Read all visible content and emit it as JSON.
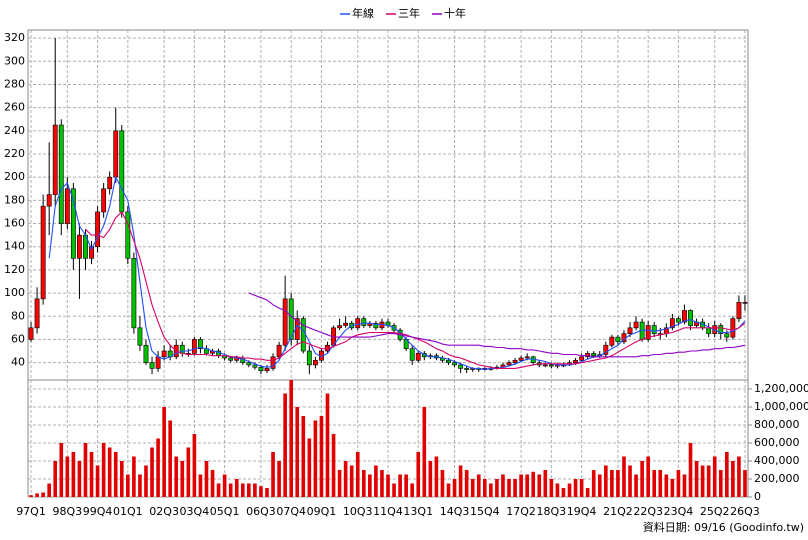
{
  "chart_data": {
    "type": "candlestick",
    "categories": [
      "97Q1",
      null,
      null,
      null,
      null,
      null,
      "98Q3",
      null,
      null,
      null,
      null,
      "99Q4",
      null,
      null,
      null,
      null,
      "01Q1",
      null,
      null,
      null,
      null,
      null,
      "02Q3",
      null,
      null,
      null,
      null,
      "03Q4",
      null,
      null,
      null,
      null,
      "05Q1",
      null,
      null,
      null,
      null,
      null,
      "06Q3",
      null,
      null,
      null,
      null,
      "07Q4",
      null,
      null,
      null,
      null,
      "09Q1",
      null,
      null,
      null,
      null,
      null,
      "10Q3",
      null,
      null,
      null,
      null,
      "11Q4",
      null,
      null,
      null,
      null,
      "13Q1",
      null,
      null,
      null,
      null,
      null,
      "14Q3",
      null,
      null,
      null,
      null,
      "15Q4",
      null,
      null,
      null,
      null,
      null,
      "17Q2",
      null,
      null,
      null,
      null,
      "18Q3",
      null,
      null,
      null,
      null,
      "19Q4",
      null,
      null,
      null,
      null,
      null,
      "21Q2",
      null,
      null,
      null,
      null,
      "22Q3",
      null,
      null,
      null,
      null,
      "23Q4",
      null,
      null,
      null,
      null,
      null,
      "25Q2",
      null,
      null,
      null,
      null,
      "26Q3"
    ],
    "open": [
      60,
      70,
      95,
      175,
      185,
      245,
      160,
      190,
      130,
      150,
      130,
      140,
      170,
      190,
      200,
      240,
      170,
      130,
      70,
      55,
      40,
      35,
      45,
      50,
      45,
      55,
      48,
      48,
      60,
      52,
      48,
      50,
      46,
      44,
      42,
      44,
      40,
      38,
      36,
      33,
      35,
      45,
      55,
      95,
      60,
      78,
      50,
      38,
      42,
      50,
      55,
      70,
      72,
      74,
      70,
      78,
      72,
      74,
      70,
      75,
      72,
      68,
      60,
      52,
      42,
      48,
      45,
      46,
      44,
      42,
      40,
      38,
      35,
      34,
      35,
      34,
      35,
      35,
      36,
      38,
      40,
      42,
      44,
      45,
      40,
      38,
      38,
      37,
      38,
      38,
      40,
      42,
      45,
      48,
      46,
      47,
      55,
      62,
      58,
      65,
      70,
      75,
      60,
      72,
      65,
      65,
      70,
      78,
      75,
      85,
      72,
      75,
      70,
      65,
      72,
      65,
      62,
      78,
      92
    ],
    "high": [
      75,
      105,
      185,
      230,
      320,
      250,
      200,
      195,
      160,
      155,
      145,
      175,
      195,
      205,
      260,
      245,
      175,
      135,
      80,
      60,
      45,
      50,
      55,
      55,
      60,
      58,
      52,
      62,
      62,
      55,
      52,
      52,
      48,
      46,
      46,
      46,
      42,
      40,
      38,
      38,
      48,
      58,
      115,
      100,
      85,
      80,
      55,
      45,
      52,
      58,
      72,
      78,
      80,
      76,
      80,
      80,
      76,
      76,
      78,
      78,
      74,
      70,
      62,
      55,
      50,
      50,
      48,
      48,
      46,
      44,
      42,
      40,
      37,
      36,
      36,
      36,
      37,
      38,
      40,
      42,
      44,
      46,
      48,
      46,
      42,
      40,
      40,
      40,
      40,
      42,
      44,
      48,
      50,
      50,
      50,
      58,
      64,
      64,
      68,
      75,
      80,
      78,
      76,
      75,
      70,
      74,
      82,
      80,
      90,
      86,
      78,
      78,
      74,
      76,
      74,
      68,
      80,
      98,
      98
    ],
    "low": [
      58,
      65,
      90,
      150,
      175,
      150,
      155,
      120,
      95,
      120,
      125,
      135,
      165,
      185,
      195,
      165,
      125,
      65,
      50,
      38,
      30,
      32,
      42,
      42,
      43,
      45,
      45,
      46,
      48,
      46,
      46,
      44,
      42,
      40,
      40,
      38,
      36,
      34,
      30,
      31,
      33,
      43,
      50,
      55,
      55,
      48,
      30,
      35,
      40,
      48,
      53,
      68,
      70,
      68,
      68,
      70,
      70,
      68,
      68,
      70,
      66,
      58,
      50,
      38,
      40,
      42,
      43,
      42,
      40,
      38,
      36,
      31,
      31,
      32,
      32,
      33,
      33,
      34,
      35,
      37,
      38,
      41,
      42,
      38,
      36,
      36,
      35,
      35,
      36,
      37,
      38,
      40,
      43,
      44,
      44,
      45,
      53,
      55,
      56,
      62,
      68,
      58,
      58,
      62,
      60,
      62,
      68,
      72,
      73,
      68,
      70,
      68,
      62,
      62,
      60,
      58,
      60,
      75,
      85
    ],
    "close": [
      70,
      95,
      175,
      185,
      245,
      160,
      190,
      130,
      150,
      130,
      140,
      170,
      190,
      200,
      240,
      170,
      130,
      70,
      55,
      40,
      35,
      45,
      50,
      45,
      55,
      48,
      48,
      60,
      52,
      48,
      50,
      46,
      44,
      42,
      44,
      40,
      38,
      36,
      33,
      35,
      45,
      55,
      95,
      60,
      78,
      50,
      38,
      42,
      50,
      55,
      70,
      72,
      74,
      70,
      78,
      72,
      74,
      70,
      75,
      72,
      68,
      60,
      52,
      42,
      48,
      45,
      46,
      44,
      42,
      40,
      38,
      35,
      34,
      35,
      34,
      35,
      35,
      36,
      38,
      40,
      42,
      44,
      45,
      40,
      38,
      38,
      37,
      38,
      38,
      40,
      42,
      45,
      48,
      46,
      47,
      55,
      62,
      58,
      65,
      70,
      75,
      60,
      72,
      65,
      65,
      70,
      78,
      75,
      85,
      72,
      75,
      70,
      65,
      72,
      65,
      62,
      78,
      92,
      92
    ],
    "up_color": "#ff0000",
    "down_color": "#00c000",
    "series": [
      {
        "name": "年線",
        "color": "#2050ff",
        "values": [
          null,
          null,
          null,
          130,
          175,
          190,
          195,
          180,
          158,
          150,
          138,
          148,
          158,
          175,
          200,
          190,
          180,
          150,
          110,
          70,
          50,
          45,
          43,
          45,
          48,
          50,
          50,
          52,
          53,
          52,
          50,
          49,
          47,
          45,
          44,
          43,
          41,
          39,
          37,
          36,
          37,
          42,
          52,
          62,
          72,
          68,
          58,
          48,
          45,
          48,
          55,
          62,
          68,
          72,
          73,
          74,
          74,
          73,
          73,
          72,
          70,
          66,
          60,
          55,
          50,
          47,
          45,
          45,
          44,
          43,
          41,
          39,
          37,
          35,
          35,
          34,
          35,
          35,
          36,
          37,
          39,
          41,
          43,
          43,
          42,
          41,
          39,
          38,
          38,
          38,
          39,
          41,
          43,
          45,
          46,
          49,
          52,
          55,
          60,
          64,
          66,
          68,
          68,
          67,
          68,
          69,
          71,
          73,
          76,
          77,
          75,
          73,
          71,
          68,
          66,
          66,
          67,
          70,
          76
        ]
      },
      {
        "name": "三年",
        "color": "#d8006a",
        "values": [
          null,
          null,
          null,
          null,
          null,
          null,
          null,
          null,
          null,
          155,
          150,
          150,
          148,
          155,
          165,
          170,
          160,
          145,
          130,
          110,
          90,
          75,
          62,
          55,
          50,
          48,
          47,
          47,
          47,
          47,
          46,
          46,
          46,
          45,
          45,
          44,
          44,
          43,
          43,
          42,
          42,
          44,
          48,
          52,
          56,
          58,
          56,
          54,
          52,
          52,
          54,
          56,
          58,
          62,
          64,
          65,
          66,
          66,
          66,
          66,
          66,
          65,
          64,
          62,
          60,
          58,
          55,
          52,
          50,
          47,
          45,
          44,
          42,
          40,
          38,
          37,
          36,
          35,
          35,
          35,
          35,
          36,
          37,
          38,
          39,
          39,
          39,
          39,
          39,
          39,
          39,
          40,
          41,
          42,
          43,
          44,
          46,
          49,
          52,
          55,
          58,
          60,
          62,
          63,
          64,
          65,
          66,
          68,
          70,
          70,
          70,
          70,
          70,
          70,
          70,
          69,
          68,
          70,
          74
        ]
      },
      {
        "name": "十年",
        "color": "#9000c8",
        "values": [
          null,
          null,
          null,
          null,
          null,
          null,
          null,
          null,
          null,
          null,
          null,
          null,
          null,
          null,
          null,
          null,
          null,
          null,
          null,
          null,
          null,
          null,
          null,
          null,
          null,
          null,
          null,
          null,
          null,
          null,
          null,
          null,
          null,
          null,
          null,
          null,
          100,
          98,
          96,
          94,
          90,
          87,
          85,
          80,
          76,
          72,
          70,
          68,
          66,
          64,
          62,
          62,
          62,
          62,
          62,
          62,
          62,
          63,
          64,
          65,
          65,
          64,
          63,
          62,
          61,
          60,
          59,
          58,
          56,
          55,
          55,
          55,
          55,
          55,
          55,
          54,
          54,
          53,
          53,
          52,
          52,
          52,
          51,
          51,
          50,
          49,
          48,
          48,
          47,
          47,
          47,
          46,
          46,
          45,
          45,
          45,
          45,
          45,
          45,
          45,
          45,
          46,
          46,
          47,
          47,
          48,
          48,
          49,
          49,
          50,
          50,
          51,
          51,
          52,
          52,
          53,
          53,
          54,
          55
        ]
      }
    ],
    "volume": {
      "axis": "y2",
      "color": "#e00000",
      "values": [
        20000,
        40000,
        50000,
        150000,
        400000,
        600000,
        450000,
        500000,
        400000,
        600000,
        500000,
        350000,
        600000,
        550000,
        500000,
        400000,
        250000,
        450000,
        250000,
        350000,
        550000,
        650000,
        1000000,
        850000,
        450000,
        400000,
        550000,
        700000,
        250000,
        400000,
        300000,
        150000,
        250000,
        150000,
        200000,
        150000,
        150000,
        150000,
        120000,
        100000,
        500000,
        400000,
        1150000,
        1300000,
        1000000,
        900000,
        650000,
        850000,
        900000,
        1150000,
        700000,
        300000,
        400000,
        350000,
        500000,
        300000,
        250000,
        350000,
        300000,
        250000,
        150000,
        250000,
        250000,
        150000,
        500000,
        1000000,
        400000,
        450000,
        300000,
        150000,
        200000,
        350000,
        300000,
        200000,
        250000,
        200000,
        150000,
        200000,
        250000,
        200000,
        200000,
        250000,
        250000,
        280000,
        250000,
        300000,
        200000,
        150000,
        100000,
        150000,
        200000,
        200000,
        100000,
        300000,
        250000,
        350000,
        300000,
        300000,
        450000,
        350000,
        250000,
        400000,
        450000,
        300000,
        300000,
        250000,
        200000,
        300000,
        250000,
        600000,
        400000,
        350000,
        350000,
        450000,
        300000,
        500000,
        400000,
        450000,
        300000
      ]
    },
    "ylim": [
      25,
      327
    ],
    "yticks": [
      40,
      60,
      80,
      100,
      120,
      140,
      160,
      180,
      200,
      220,
      240,
      260,
      280,
      300,
      320
    ],
    "y2lim": [
      0,
      1300000
    ],
    "y2ticks": [
      0,
      {
        "value": 200000,
        "label": "200,000"
      },
      {
        "value": 400000,
        "label": "400,000"
      },
      {
        "value": 600000,
        "label": "600,000"
      },
      {
        "value": 800000,
        "label": "800,000"
      },
      {
        "value": 1000000,
        "label": "1,000,000"
      },
      {
        "value": 1200000,
        "label": "1,200,000"
      }
    ],
    "grid": true,
    "footnote": "資料日期: 09/16 (Goodinfo.tw)"
  }
}
